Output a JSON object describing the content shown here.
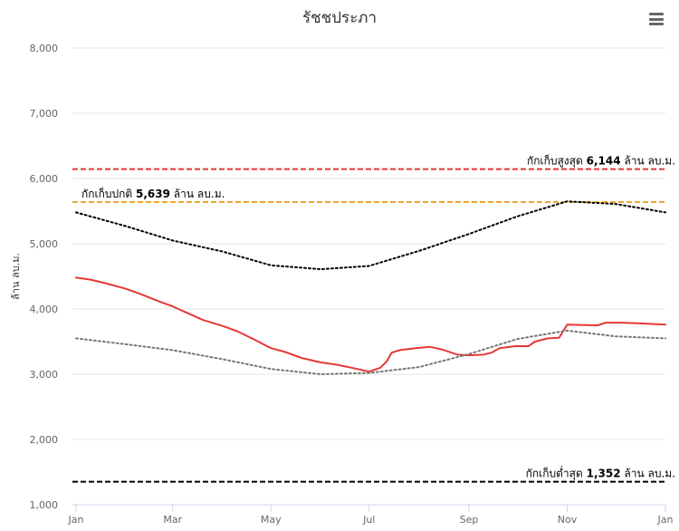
{
  "chart": {
    "title": "รัชชประภา",
    "menu_icon": "hamburger-menu-icon"
  },
  "chart_data": {
    "type": "line",
    "title": "รัชชประภา",
    "xlabel": "",
    "ylabel": "ล้าน ลบ.ม.",
    "ylim": [
      1000,
      8000
    ],
    "yticks": [
      1000,
      2000,
      3000,
      4000,
      5000,
      6000,
      7000,
      8000
    ],
    "ytick_labels": [
      "1,000",
      "2,000",
      "3,000",
      "4,000",
      "5,000",
      "6,000",
      "7,000",
      "8,000"
    ],
    "xlim": [
      "2024-01-01",
      "2025-01-01"
    ],
    "xticks": [
      "2024-01-01",
      "2024-03-01",
      "2024-05-01",
      "2024-07-01",
      "2024-09-01",
      "2024-11-01",
      "2025-01-01"
    ],
    "xtick_labels": [
      "Jan",
      "Mar",
      "May",
      "Jul",
      "Sep",
      "Nov",
      "Jan"
    ],
    "grid": true,
    "legend": "none",
    "series": [
      {
        "color": "#e53935",
        "style": "solid",
        "points": [
          [
            "2024-01-01",
            4480
          ],
          [
            "2024-01-10",
            4450
          ],
          [
            "2024-01-20",
            4390
          ],
          [
            "2024-02-01",
            4310
          ],
          [
            "2024-02-10",
            4230
          ],
          [
            "2024-02-20",
            4130
          ],
          [
            "2024-03-01",
            4040
          ],
          [
            "2024-03-10",
            3940
          ],
          [
            "2024-03-20",
            3830
          ],
          [
            "2024-04-01",
            3740
          ],
          [
            "2024-04-10",
            3660
          ],
          [
            "2024-04-20",
            3540
          ],
          [
            "2024-05-01",
            3400
          ],
          [
            "2024-05-10",
            3340
          ],
          [
            "2024-05-20",
            3250
          ],
          [
            "2024-06-01",
            3180
          ],
          [
            "2024-06-10",
            3150
          ],
          [
            "2024-06-20",
            3100
          ],
          [
            "2024-07-01",
            3040
          ],
          [
            "2024-07-08",
            3100
          ],
          [
            "2024-07-12",
            3200
          ],
          [
            "2024-07-15",
            3330
          ],
          [
            "2024-07-20",
            3370
          ],
          [
            "2024-07-30",
            3400
          ],
          [
            "2024-08-08",
            3420
          ],
          [
            "2024-08-15",
            3380
          ],
          [
            "2024-08-25",
            3300
          ],
          [
            "2024-09-01",
            3290
          ],
          [
            "2024-09-10",
            3300
          ],
          [
            "2024-09-15",
            3330
          ],
          [
            "2024-09-20",
            3400
          ],
          [
            "2024-09-30",
            3430
          ],
          [
            "2024-10-08",
            3430
          ],
          [
            "2024-10-12",
            3500
          ],
          [
            "2024-10-20",
            3550
          ],
          [
            "2024-10-27",
            3560
          ],
          [
            "2024-11-01",
            3760
          ],
          [
            "2024-11-20",
            3750
          ],
          [
            "2024-11-25",
            3790
          ],
          [
            "2024-12-05",
            3790
          ],
          [
            "2024-12-15",
            3780
          ],
          [
            "2025-01-01",
            3760
          ]
        ]
      },
      {
        "color": "#777777",
        "style": "dotted",
        "points": [
          [
            "2024-01-01",
            3550
          ],
          [
            "2024-02-01",
            3460
          ],
          [
            "2024-03-01",
            3370
          ],
          [
            "2024-04-01",
            3230
          ],
          [
            "2024-05-01",
            3080
          ],
          [
            "2024-06-01",
            3000
          ],
          [
            "2024-07-01",
            3020
          ],
          [
            "2024-08-01",
            3110
          ],
          [
            "2024-09-01",
            3310
          ],
          [
            "2024-10-01",
            3540
          ],
          [
            "2024-11-01",
            3670
          ],
          [
            "2024-12-01",
            3580
          ],
          [
            "2025-01-01",
            3550
          ]
        ]
      },
      {
        "color": "#000000",
        "style": "dotted",
        "points": [
          [
            "2024-01-01",
            5480
          ],
          [
            "2024-02-01",
            5270
          ],
          [
            "2024-03-01",
            5050
          ],
          [
            "2024-04-01",
            4880
          ],
          [
            "2024-05-01",
            4670
          ],
          [
            "2024-06-01",
            4610
          ],
          [
            "2024-07-01",
            4660
          ],
          [
            "2024-08-01",
            4890
          ],
          [
            "2024-09-01",
            5150
          ],
          [
            "2024-10-01",
            5420
          ],
          [
            "2024-11-01",
            5650
          ],
          [
            "2024-12-01",
            5610
          ],
          [
            "2025-01-01",
            5480
          ]
        ]
      }
    ],
    "reference_lines": [
      {
        "value": 6144,
        "color": "#e53935",
        "style": "dashed",
        "label": "กักเก็บสูงสุด",
        "value_text": "6,144",
        "unit": "ล้าน ลบ.ม.",
        "label_align": "right"
      },
      {
        "value": 5639,
        "color": "#f0a830",
        "style": "dashed",
        "label": "กักเก็บปกติ",
        "value_text": "5,639",
        "unit": "ล้าน ลบ.ม.",
        "label_align": "left"
      },
      {
        "value": 1352,
        "color": "#000000",
        "style": "dashed",
        "label": "กักเก็บต่ำสุด",
        "value_text": "1,352",
        "unit": "ล้าน ลบ.ม.",
        "label_align": "right"
      }
    ]
  }
}
